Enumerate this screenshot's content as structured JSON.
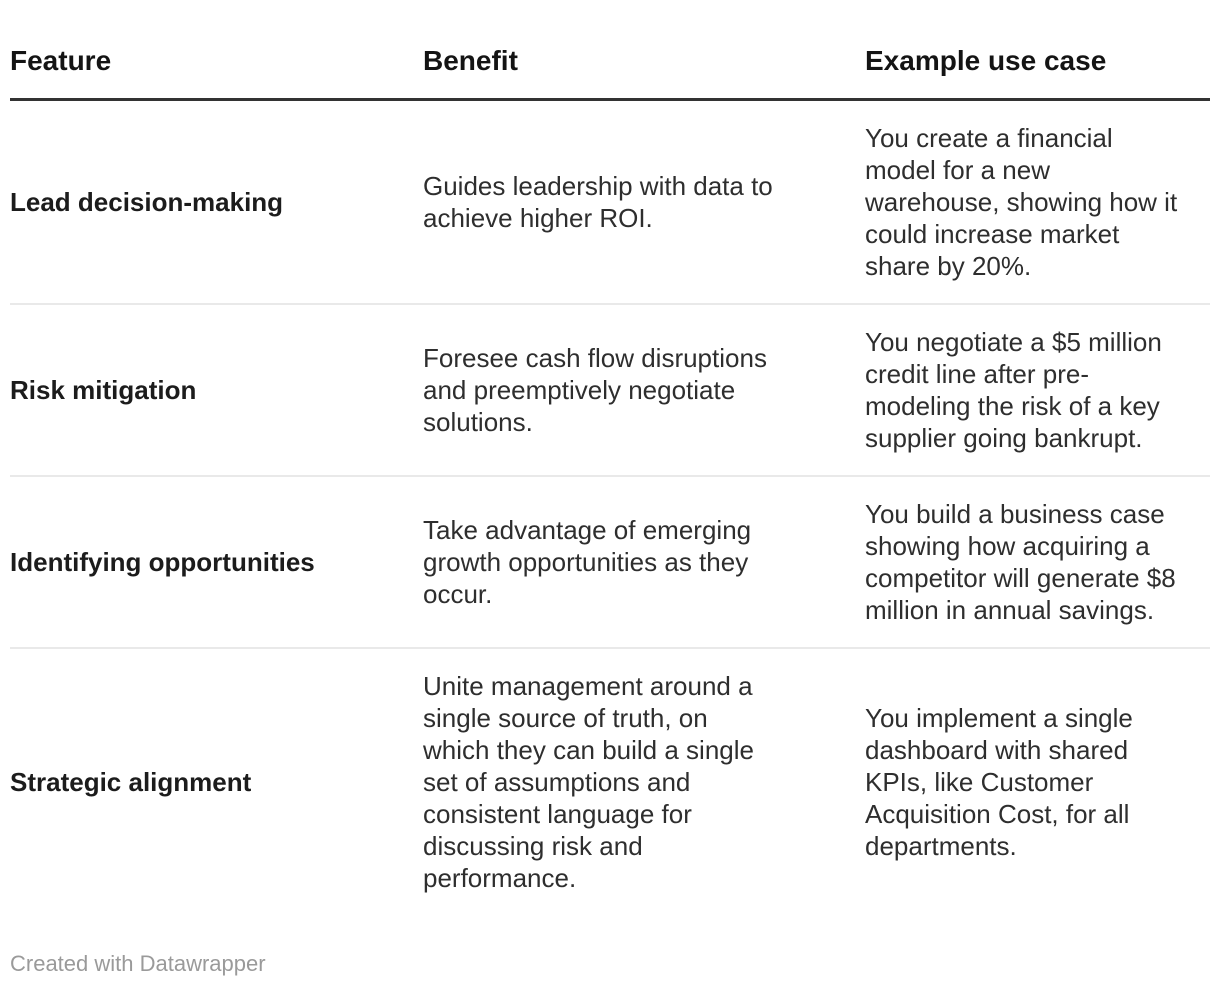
{
  "chart_data": {
    "type": "table",
    "columns": [
      "Feature",
      "Benefit",
      "Example use case"
    ],
    "rows": [
      {
        "feature": "Lead decision-making",
        "benefit": "Guides leadership with data to achieve higher ROI.",
        "example": "You create a financial model for a new warehouse, showing how it could increase market share by 20%."
      },
      {
        "feature": "Risk mitigation",
        "benefit": "Foresee cash flow disruptions and preemptively negotiate solutions.",
        "example": "You negotiate a $5 million credit line after pre-modeling the risk of a key supplier going bankrupt."
      },
      {
        "feature": "Identifying opportunities",
        "benefit": "Take advantage of emerging growth opportunities as they occur.",
        "example": "You build a business case showing how acquiring a competitor will generate $8 million in annual savings."
      },
      {
        "feature": "Strategic alignment",
        "benefit": "Unite management around a single source of truth, on which they can build a single set of assumptions and consistent language for discussing risk and performance.",
        "example": "You implement a single dashboard with shared KPIs, like Customer Acquisition Cost, for all departments."
      }
    ],
    "title": "",
    "layout_hints": {
      "header_rule": "thick dark bottom border under header row",
      "row_dividers": "thin light gray lines between body rows",
      "first_column_bold": true,
      "vertical_align": "middle"
    }
  },
  "footer": {
    "attribution": "Created with Datawrapper"
  },
  "colors": {
    "background": "#ffffff",
    "header_text": "#141414",
    "body_text": "#2e2e2e",
    "header_rule": "#333333",
    "row_divider": "#e9e9e9",
    "attribution_text": "#9a9a9a"
  }
}
